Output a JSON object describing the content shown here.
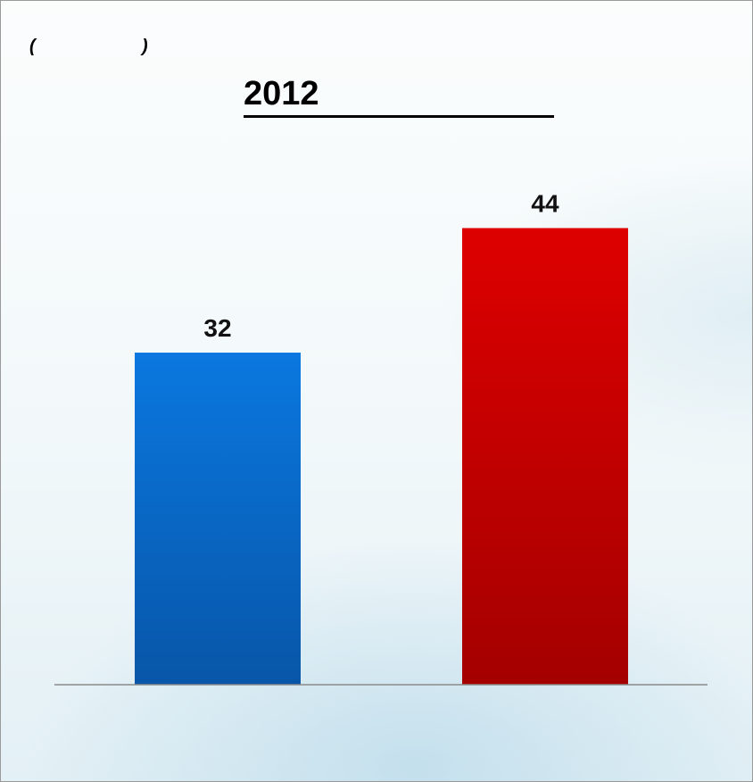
{
  "header": {
    "paren_left": "(",
    "paren_right": ")"
  },
  "chart_data": {
    "type": "bar",
    "title": "2012",
    "categories": [
      "",
      ""
    ],
    "values": [
      32,
      44
    ],
    "data_labels": [
      "32",
      "44"
    ],
    "colors": [
      "#0a6fd4",
      "#cf0000"
    ],
    "ylim": [
      0,
      48
    ],
    "grid": false,
    "legend": "none"
  }
}
